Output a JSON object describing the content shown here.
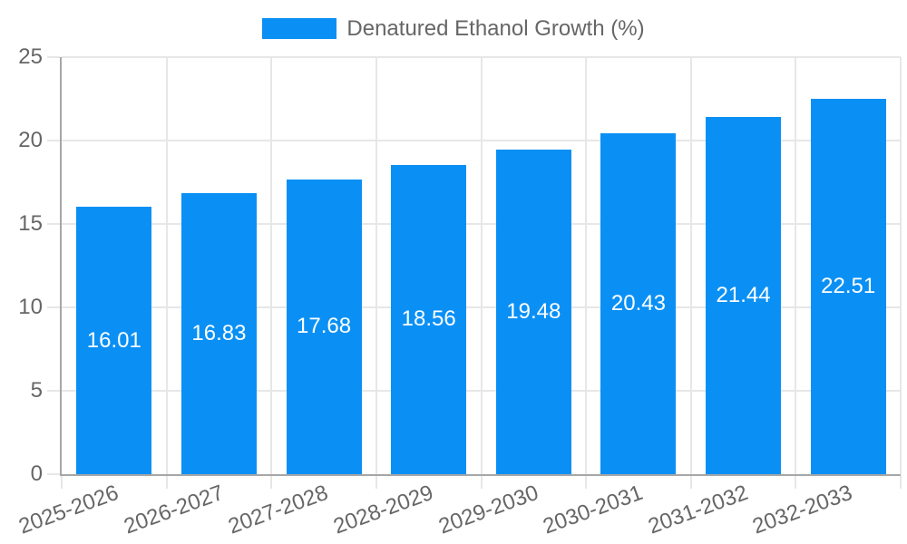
{
  "legend": {
    "label": "Denatured Ethanol Growth (%)"
  },
  "colors": {
    "bar": "#0a90f5",
    "grid": "#e7e7e7",
    "axis": "#a6a6a6",
    "tick_text": "#666666",
    "bar_label_text": "#ffffff",
    "background": "#ffffff"
  },
  "chart_data": {
    "type": "bar",
    "title": "Denatured Ethanol Growth (%)",
    "categories": [
      "2025-2026",
      "2026-2027",
      "2027-2028",
      "2028-2029",
      "2029-2030",
      "2030-2031",
      "2031-2032",
      "2032-2033"
    ],
    "values": [
      16.01,
      16.83,
      17.68,
      18.56,
      19.48,
      20.43,
      21.44,
      22.51
    ],
    "value_label_texts": [
      "16.01",
      "16.83",
      "17.68",
      "18.56",
      "19.48",
      "20.43",
      "21.44",
      "22.51"
    ],
    "xlabel": "",
    "ylabel": "",
    "ylim": [
      0,
      25
    ],
    "yticks": [
      0,
      5,
      10,
      15,
      20,
      25
    ],
    "grid": true,
    "legend_position": "top-center",
    "value_label_position": "inside-center"
  }
}
